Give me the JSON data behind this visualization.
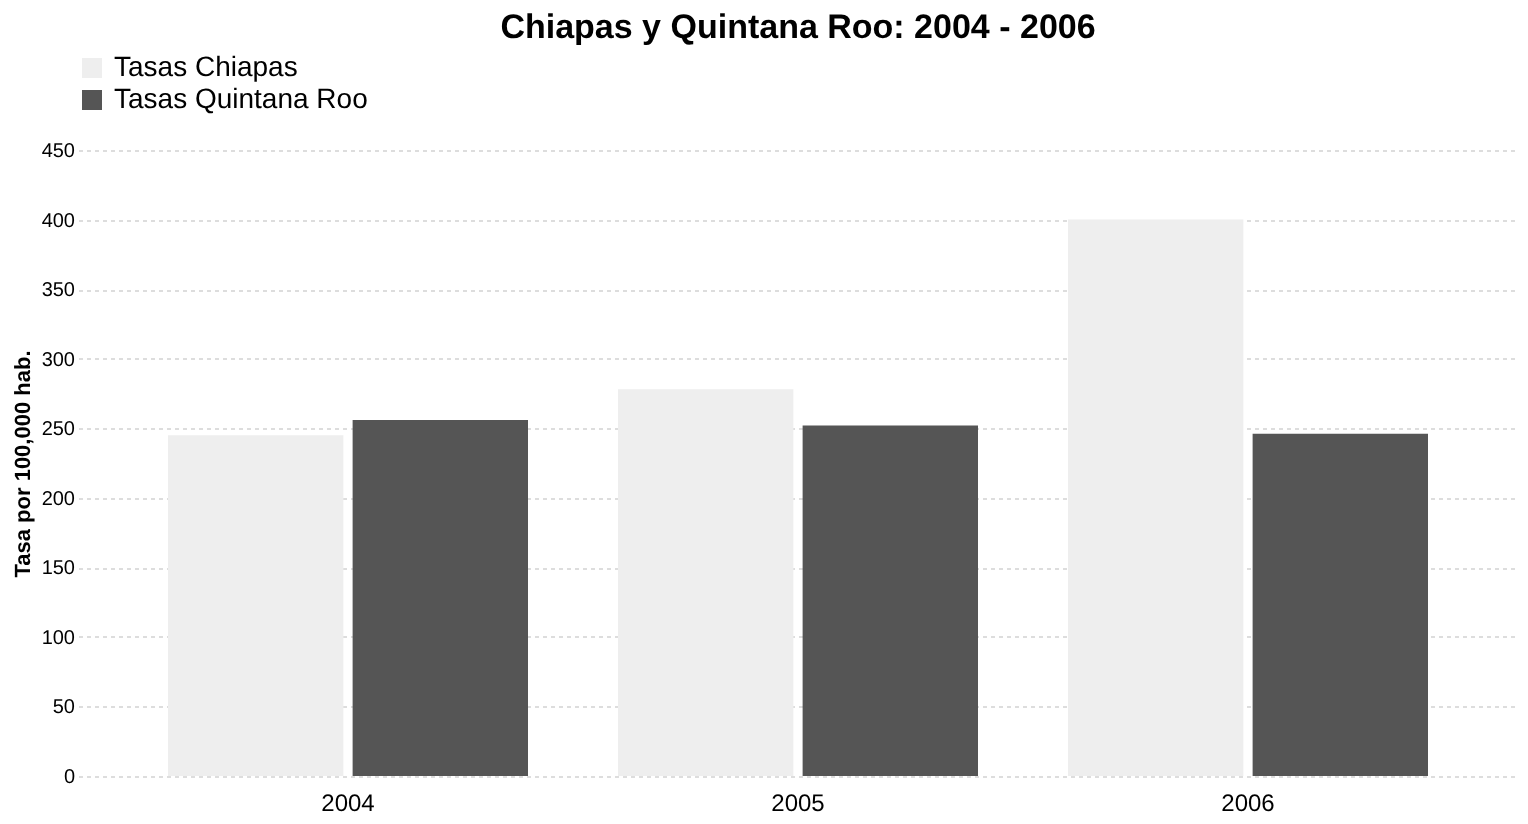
{
  "chart_data": {
    "type": "bar",
    "title": "Chiapas y Quintana Roo: 2004 - 2006",
    "ylabel": "Tasa por 100,000 hab.",
    "categories": [
      "2004",
      "2005",
      "2006"
    ],
    "series": [
      {
        "name": "Tasas Chiapas",
        "color": "#eeeeee",
        "values": [
          245,
          278,
          400
        ]
      },
      {
        "name": "Tasas Quintana Roo",
        "color": "#555555",
        "values": [
          256,
          252,
          246
        ]
      }
    ],
    "ylim": [
      0,
      450
    ],
    "yticks": [
      0,
      50,
      100,
      150,
      200,
      250,
      300,
      350,
      400,
      450
    ],
    "grid": "y",
    "legend": "top"
  }
}
